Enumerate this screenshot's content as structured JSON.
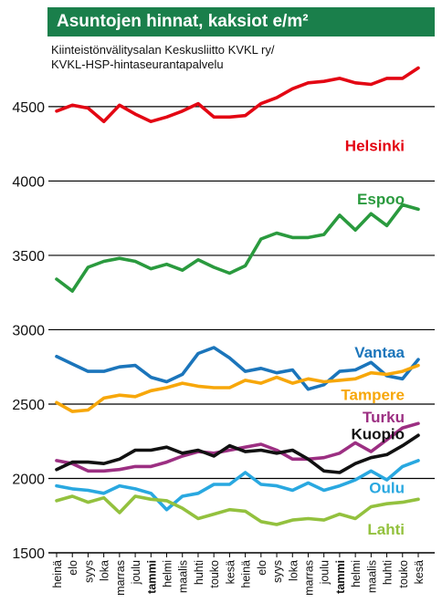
{
  "title": "Asuntojen hinnat, kaksiot e/m²",
  "source_lines": [
    "Kiinteistönvälitysalan Keskusliitto KVKL ry/",
    "KVKL-HSP-hintaseurantapalvelu"
  ],
  "chart_data": {
    "type": "line",
    "title": "Asuntojen hinnat, kaksiot e/m²",
    "xlabel": "",
    "ylabel": "",
    "ylim": [
      1500,
      4800
    ],
    "yticks": [
      1500,
      2000,
      2500,
      3000,
      3500,
      4000,
      4500
    ],
    "grid": "horizontal",
    "categories": [
      {
        "label": "heinä",
        "bold": false
      },
      {
        "label": "elo",
        "bold": false
      },
      {
        "label": "syys",
        "bold": false
      },
      {
        "label": "loka",
        "bold": false
      },
      {
        "label": "marras",
        "bold": false
      },
      {
        "label": "joulu",
        "bold": false
      },
      {
        "label": "tammi",
        "bold": true
      },
      {
        "label": "helmi",
        "bold": false
      },
      {
        "label": "maalis",
        "bold": false
      },
      {
        "label": "huhti",
        "bold": false
      },
      {
        "label": "touko",
        "bold": false
      },
      {
        "label": "kesä",
        "bold": false
      },
      {
        "label": "heinä",
        "bold": false
      },
      {
        "label": "elo",
        "bold": false
      },
      {
        "label": "syys",
        "bold": false
      },
      {
        "label": "loka",
        "bold": false
      },
      {
        "label": "marras",
        "bold": false
      },
      {
        "label": "joulu",
        "bold": false
      },
      {
        "label": "tammi",
        "bold": true
      },
      {
        "label": "helmi",
        "bold": false
      },
      {
        "label": "maalis",
        "bold": false
      },
      {
        "label": "huhti",
        "bold": false
      },
      {
        "label": "touko",
        "bold": false
      },
      {
        "label": "kesä",
        "bold": false
      }
    ],
    "series": [
      {
        "name": "Helsinki",
        "color": "#e30613",
        "label_value": 4240,
        "values": [
          4470,
          4510,
          4490,
          4400,
          4510,
          4450,
          4400,
          4430,
          4470,
          4520,
          4430,
          4430,
          4440,
          4520,
          4560,
          4620,
          4660,
          4670,
          4690,
          4660,
          4650,
          4690,
          4690,
          4760
        ]
      },
      {
        "name": "Espoo",
        "color": "#2a9a3e",
        "label_value": 3880,
        "values": [
          3340,
          3260,
          3420,
          3460,
          3480,
          3460,
          3410,
          3440,
          3400,
          3470,
          3420,
          3380,
          3430,
          3610,
          3650,
          3620,
          3620,
          3640,
          3770,
          3670,
          3780,
          3700,
          3840,
          3810
        ]
      },
      {
        "name": "Vantaa",
        "color": "#1b75bb",
        "label_value": 2850,
        "values": [
          2820,
          2770,
          2720,
          2720,
          2750,
          2760,
          2680,
          2650,
          2700,
          2840,
          2880,
          2810,
          2720,
          2740,
          2710,
          2730,
          2600,
          2630,
          2720,
          2730,
          2780,
          2690,
          2670,
          2800
        ]
      },
      {
        "name": "Tampere",
        "color": "#f7a70a",
        "label_value": 2565,
        "values": [
          2510,
          2450,
          2460,
          2540,
          2560,
          2550,
          2590,
          2610,
          2640,
          2620,
          2610,
          2610,
          2660,
          2640,
          2680,
          2640,
          2670,
          2650,
          2660,
          2670,
          2710,
          2700,
          2720,
          2760
        ]
      },
      {
        "name": "Turku",
        "color": "#9c2f82",
        "label_value": 2415,
        "values": [
          2120,
          2100,
          2050,
          2050,
          2060,
          2080,
          2080,
          2110,
          2150,
          2180,
          2170,
          2190,
          2210,
          2230,
          2190,
          2130,
          2130,
          2140,
          2170,
          2240,
          2180,
          2260,
          2340,
          2370
        ]
      },
      {
        "name": "Kuopio",
        "color": "#111111",
        "label_value": 2300,
        "values": [
          2060,
          2110,
          2110,
          2100,
          2130,
          2190,
          2190,
          2210,
          2170,
          2190,
          2150,
          2220,
          2180,
          2190,
          2170,
          2190,
          2130,
          2050,
          2040,
          2100,
          2140,
          2160,
          2220,
          2290
        ]
      },
      {
        "name": "Oulu",
        "color": "#29a8e0",
        "label_value": 1940,
        "values": [
          1950,
          1930,
          1920,
          1900,
          1950,
          1930,
          1900,
          1790,
          1880,
          1900,
          1960,
          1960,
          2040,
          1960,
          1950,
          1920,
          1970,
          1920,
          1950,
          1990,
          2050,
          1990,
          2080,
          2120
        ]
      },
      {
        "name": "Lahti",
        "color": "#93c13e",
        "label_value": 1660,
        "values": [
          1850,
          1880,
          1840,
          1870,
          1770,
          1880,
          1860,
          1850,
          1800,
          1730,
          1760,
          1790,
          1780,
          1710,
          1690,
          1720,
          1730,
          1720,
          1760,
          1730,
          1810,
          1830,
          1840,
          1860
        ]
      }
    ]
  }
}
